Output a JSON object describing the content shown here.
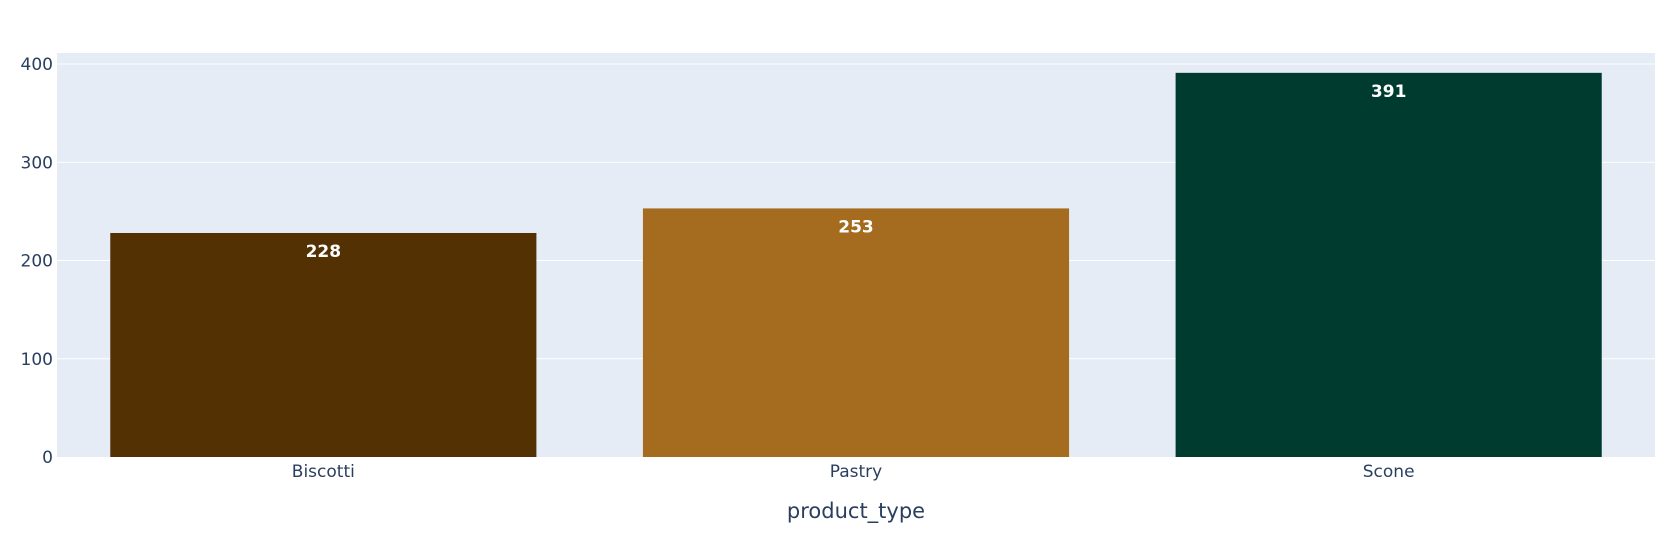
{
  "chart_data": {
    "type": "bar",
    "categories": [
      "Biscotti",
      "Pastry",
      "Scone"
    ],
    "values": [
      228,
      253,
      391
    ],
    "colors": [
      "#533103",
      "#a56b1f",
      "#003b30"
    ],
    "title": "",
    "xlabel": "product_type",
    "ylabel": "",
    "ylim": [
      0,
      400
    ],
    "yticks": [
      0,
      100,
      200,
      300,
      400
    ],
    "grid": true,
    "plot_background": "#e5ecf6",
    "gridline_color": "#ffffff",
    "text_color": "#2a3f5f",
    "data_labels": true,
    "legend": "none"
  }
}
